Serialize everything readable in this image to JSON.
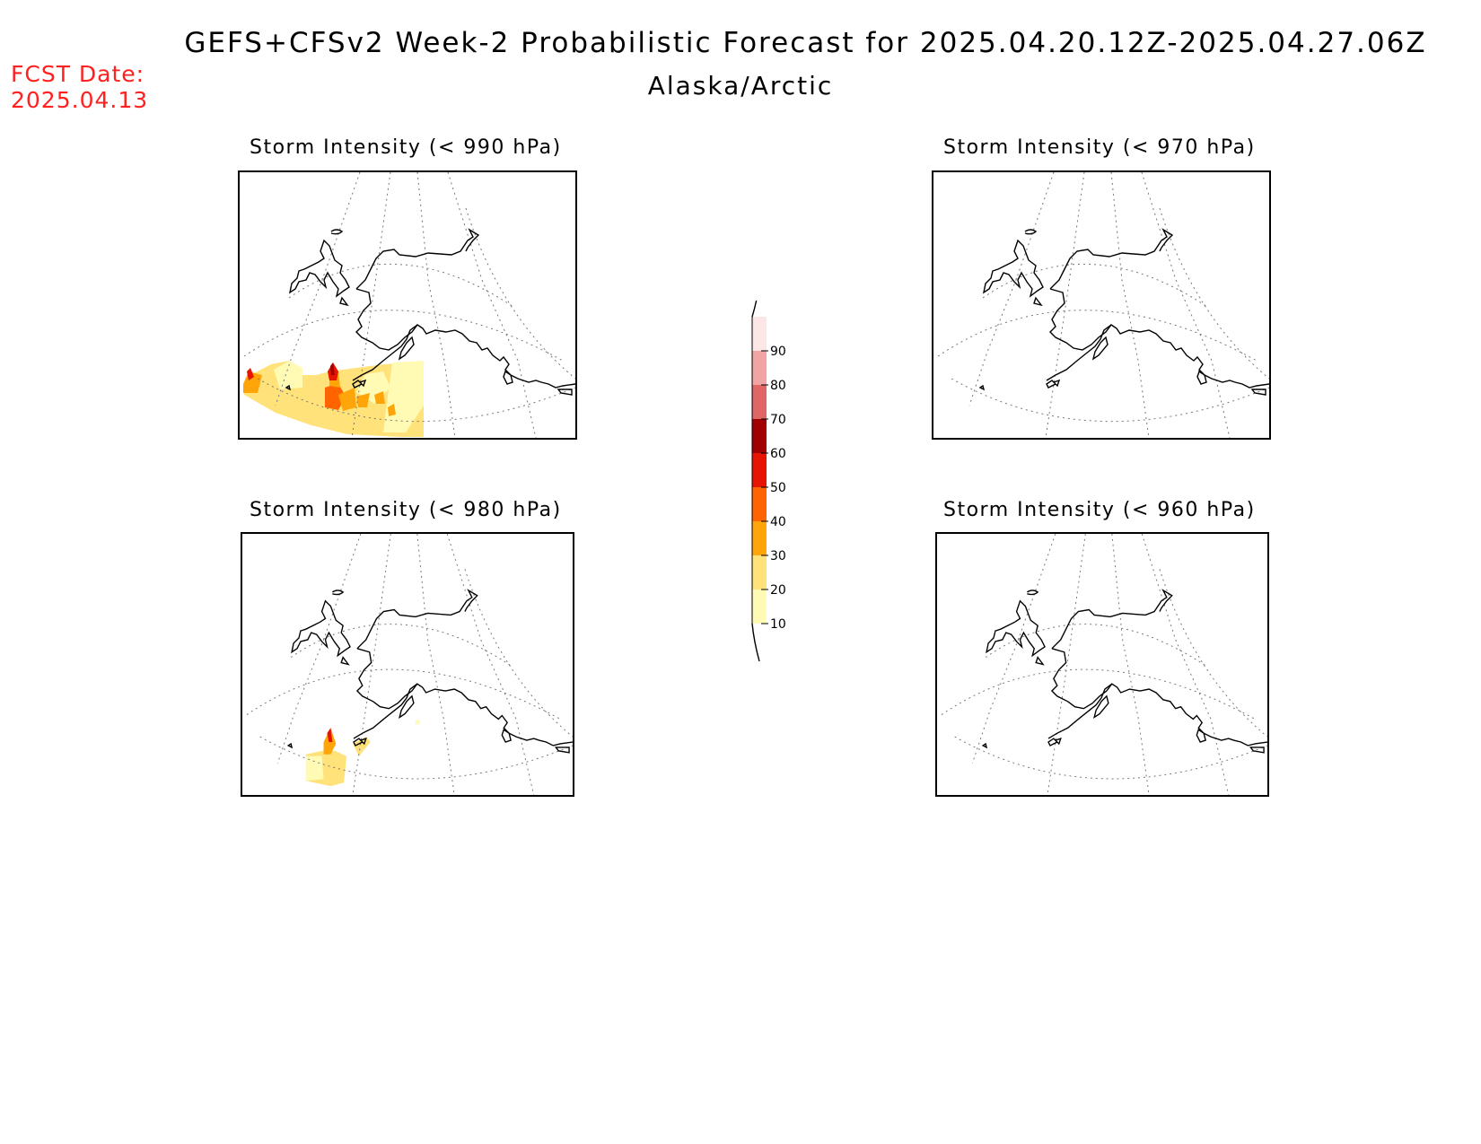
{
  "header": {
    "title": "GEFS+CFSv2 Week-2 Probabilistic Forecast for 2025.04.20.12Z-2025.04.27.06Z",
    "region": "Alaska/Arctic",
    "fcst_label": "FCST Date:",
    "fcst_date": "2025.04.13",
    "fcst_color": "#ff2020"
  },
  "panels": [
    {
      "id": "p990",
      "title": "Storm Intensity (< 990 hPa)",
      "has_data": true
    },
    {
      "id": "p970",
      "title": "Storm Intensity (< 970 hPa)",
      "has_data": false
    },
    {
      "id": "p980",
      "title": "Storm Intensity (< 980 hPa)",
      "has_data": true
    },
    {
      "id": "p960",
      "title": "Storm Intensity (< 960 hPa)",
      "has_data": false
    }
  ],
  "colorbar": {
    "levels": [
      "10",
      "20",
      "30",
      "40",
      "50",
      "60",
      "70",
      "80",
      "90"
    ],
    "colors": [
      "#fffbb4",
      "#ffe27a",
      "#ffa50a",
      "#ff6400",
      "#e61400",
      "#a00000",
      "#e06666",
      "#f2a3a3",
      "#fce6e6"
    ]
  }
}
